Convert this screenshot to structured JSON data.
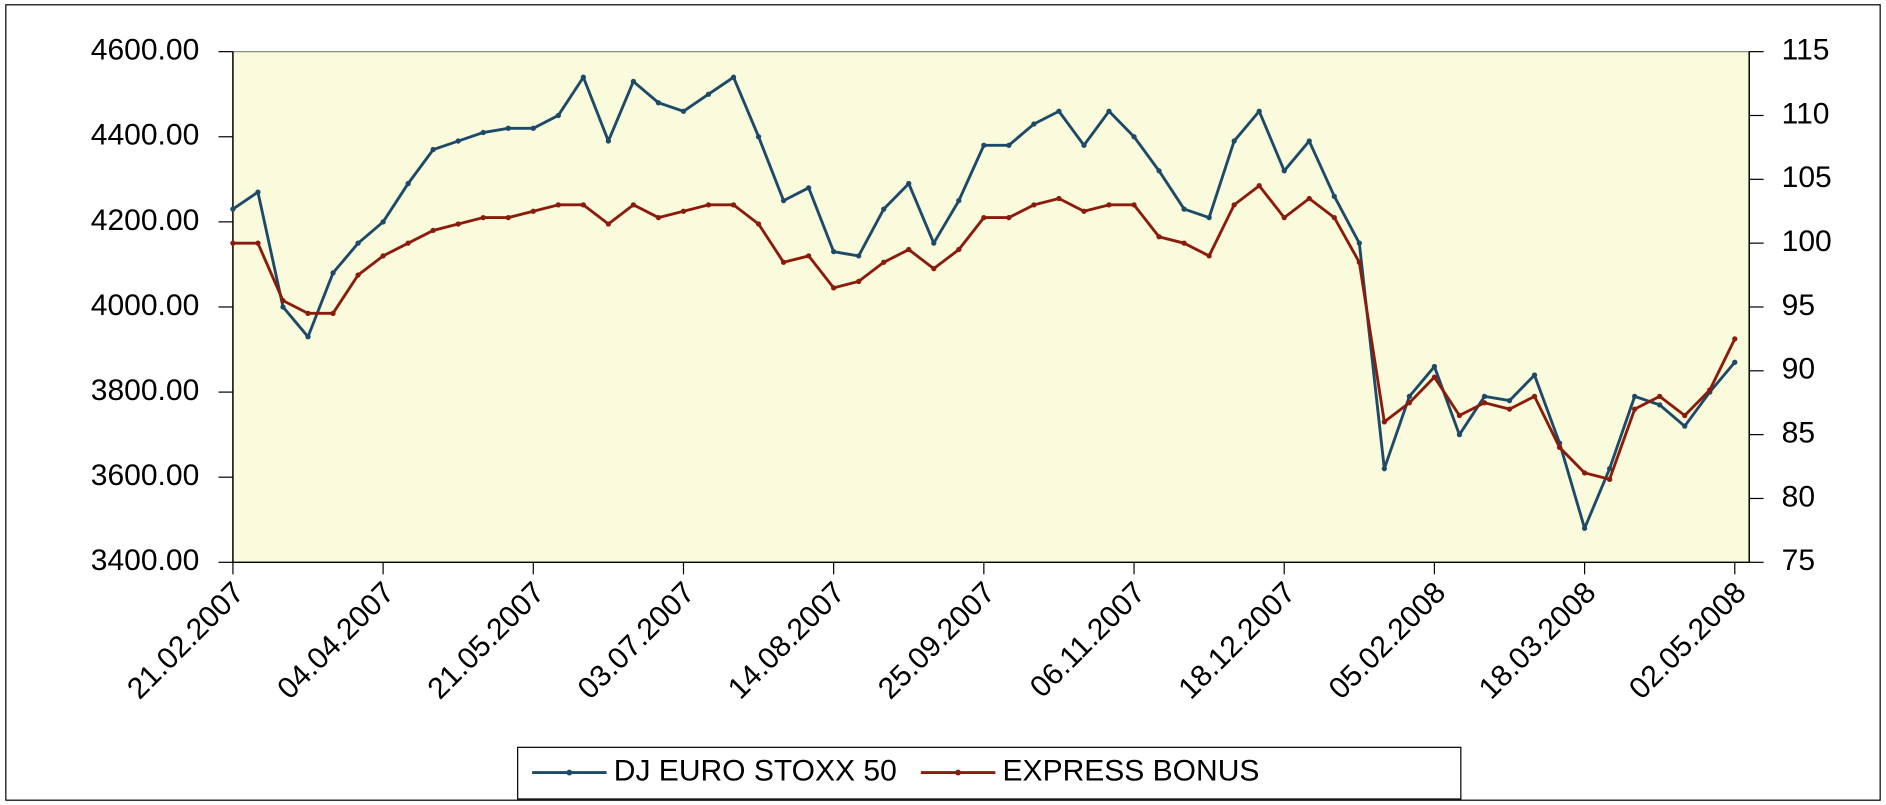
{
  "chart_data": {
    "type": "line",
    "categories": [
      "21.02.2007",
      null,
      null,
      null,
      null,
      null,
      "04.04.2007",
      null,
      null,
      null,
      null,
      null,
      "21.05.2007",
      null,
      null,
      null,
      null,
      null,
      "03.07.2007",
      null,
      null,
      null,
      null,
      null,
      "14.08.2007",
      null,
      null,
      null,
      null,
      null,
      "25.09.2007",
      null,
      null,
      null,
      null,
      null,
      "06.11.2007",
      null,
      null,
      null,
      null,
      null,
      "18.12.2007",
      null,
      null,
      null,
      null,
      null,
      "05.02.2008",
      null,
      null,
      null,
      null,
      null,
      "18.03.2008",
      null,
      null,
      null,
      null,
      null,
      "02.05.2008"
    ],
    "series": [
      {
        "name": "DJ EURO STOXX 50",
        "color": "#1d4a68",
        "axis": "y",
        "values": [
          4230,
          4270,
          4000,
          3930,
          4080,
          4150,
          4200,
          4290,
          4370,
          4390,
          4410,
          4420,
          4420,
          4450,
          4540,
          4390,
          4530,
          4480,
          4460,
          4500,
          4540,
          4400,
          4250,
          4280,
          4130,
          4120,
          4230,
          4290,
          4150,
          4250,
          4380,
          4380,
          4430,
          4460,
          4380,
          4460,
          4400,
          4320,
          4230,
          4210,
          4390,
          4460,
          4320,
          4390,
          4260,
          4150,
          3620,
          3790,
          3860,
          3700,
          3790,
          3780,
          3840,
          3680,
          3480,
          3620,
          3790,
          3770,
          3720,
          3800,
          3870
        ]
      },
      {
        "name": "EXPRESS BONUS",
        "color": "#8b1c0c",
        "axis": "y2",
        "values": [
          100,
          100,
          95.5,
          94.5,
          94.5,
          97.5,
          99,
          100,
          101,
          101.5,
          102,
          102,
          102.5,
          103,
          103,
          101.5,
          103,
          102,
          102.5,
          103,
          103,
          101.5,
          98.5,
          99,
          96.5,
          97,
          98.5,
          99.5,
          98,
          99.5,
          102,
          102,
          103,
          103.5,
          102.5,
          103,
          103,
          100.5,
          100,
          99,
          103,
          104.5,
          102,
          103.5,
          102,
          98.5,
          86,
          87.5,
          89.5,
          86.5,
          87.5,
          87,
          88,
          84,
          82,
          81.5,
          87,
          88,
          86.5,
          88.5,
          92.5
        ]
      }
    ],
    "ylim": [
      3400,
      4600
    ],
    "yticks": [
      {
        "value": 3400,
        "label": "3400.00"
      },
      {
        "value": 3600,
        "label": "3600.00"
      },
      {
        "value": 3800,
        "label": "3800.00"
      },
      {
        "value": 4000,
        "label": "4000.00"
      },
      {
        "value": 4200,
        "label": "4200.00"
      },
      {
        "value": 4400,
        "label": "4400.00"
      },
      {
        "value": 4600,
        "label": "4600.00"
      }
    ],
    "y2lim": [
      75,
      115
    ],
    "y2ticks": [
      75,
      80,
      85,
      90,
      95,
      100,
      105,
      110,
      115
    ],
    "grid": false,
    "legend": "bottom",
    "background": "#fafadc"
  }
}
